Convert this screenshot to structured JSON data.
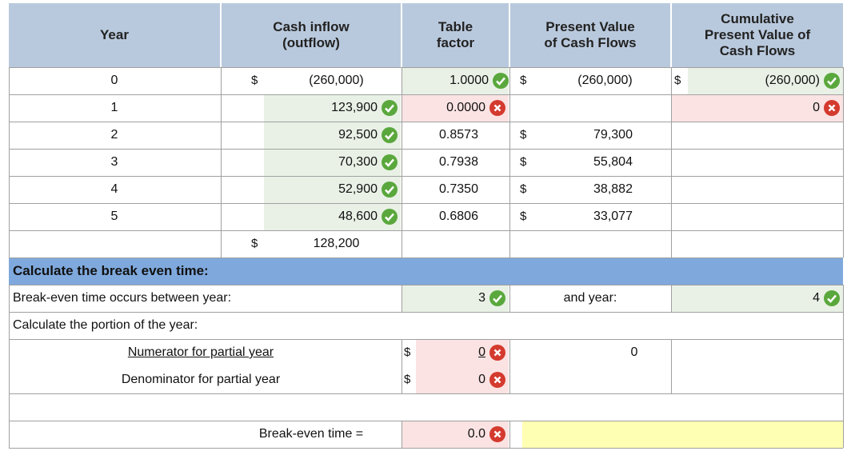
{
  "headers": {
    "year": "Year",
    "cash_inflow": [
      "Cash inflow",
      "(outflow)"
    ],
    "table_factor": [
      "Table",
      "factor"
    ],
    "pv": [
      "Present Value",
      "of Cash Flows"
    ],
    "cum_pv": [
      "Cumulative",
      "Present Value of",
      "Cash Flows"
    ]
  },
  "currency_symbol": "$",
  "rows": [
    {
      "year": "0",
      "cash": "(260,000)",
      "factor": "1.0000",
      "pv": "(260,000)",
      "cum": "(260,000)"
    },
    {
      "year": "1",
      "cash": "123,900",
      "factor": "0.0000",
      "pv": "",
      "cum": "0"
    },
    {
      "year": "2",
      "cash": "92,500",
      "factor": "0.8573",
      "pv": "79,300",
      "cum": ""
    },
    {
      "year": "3",
      "cash": "70,300",
      "factor": "0.7938",
      "pv": "55,804",
      "cum": ""
    },
    {
      "year": "4",
      "cash": "52,900",
      "factor": "0.7350",
      "pv": "38,882",
      "cum": ""
    },
    {
      "year": "5",
      "cash": "48,600",
      "factor": "0.6806",
      "pv": "33,077",
      "cum": ""
    }
  ],
  "total_cash": "128,200",
  "section_title": "Calculate the break even time:",
  "break_even": {
    "between_label": "Break-even time occurs between year:",
    "year_a": "3",
    "and_label": "and year:",
    "year_b": "4",
    "portion_label": "Calculate the portion of the year:",
    "numerator_label": "Numerator for partial year",
    "numerator_value": "0",
    "numerator_pv": "0",
    "denominator_label": "Denominator for partial year",
    "denominator_value": "0",
    "time_label": "Break-even time =",
    "time_value": "0.0",
    "answer": ""
  },
  "colors": {
    "header_bg": "#b9c9dd",
    "section_bar": "#7fa9dd",
    "correct_bg": "#e9f1e6",
    "incorrect_bg": "#fbe3e3",
    "answer_bg": "#ffffb3",
    "check_icon": "#5aa83d",
    "x_icon": "#d43a2e"
  },
  "icons": [
    "check-circle-icon",
    "x-circle-icon"
  ]
}
